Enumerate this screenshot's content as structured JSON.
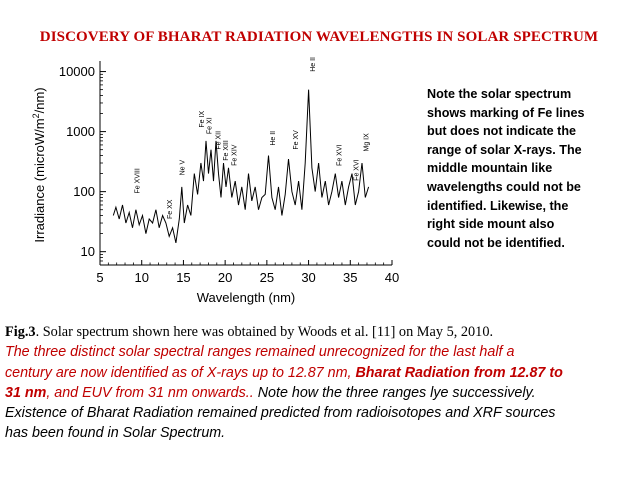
{
  "title": "DISCOVERY OF BHARAT RADIATION WAVELENGTHS IN SOLAR SPECTRUM",
  "note_lines": [
    "Note the solar spectrum",
    "shows marking of Fe lines",
    "but  does not indicate  the",
    "range of  solar X-rays.  The",
    "middle mountain like",
    "wavelengths  could not be",
    "identified.  Likewise, the",
    "right side mount also",
    "could not be identified."
  ],
  "caption": {
    "fig_label": "Fig.3",
    "line1_text": ". Solar spectrum shown here was obtained by Woods et al. [11] on May 5, 2010.",
    "line2": "The three distinct solar spectral ranges remained unrecognized for the last half a",
    "line3_a": "century are now identified as of X-rays up to 12.87 nm, ",
    "line3_b": "Bharat Radiation from 12.87 to",
    "line4_a": "31 nm",
    "line4_b": ", and EUV from 31 nm onwards..",
    "line4_c": " Note how the three ranges lye successively.",
    "line5": "Existence of Bharat Radiation remained predicted from radioisotopes and XRF sources",
    "line6": "has been found in Solar Spectrum."
  },
  "chart_data": {
    "type": "line",
    "xlabel": "Wavelength (nm)",
    "ylabel_parts": [
      "Irradiance (microW/m",
      "2",
      "/nm)"
    ],
    "xlim": [
      5,
      40
    ],
    "ylim": [
      6,
      15000
    ],
    "yscale": "log",
    "xticks": [
      5,
      10,
      15,
      20,
      25,
      30,
      35,
      40
    ],
    "yticks": [
      10,
      100,
      1000,
      10000
    ],
    "ytick_labels": [
      "10",
      "100",
      "1000",
      "10000"
    ],
    "line_color": "#000000",
    "series": [
      {
        "x": [
          6.6,
          6.9,
          7.3,
          7.7,
          8.1,
          8.5,
          8.9,
          9.3,
          9.7,
          10.1,
          10.5,
          10.9,
          11.3,
          11.7,
          12.1,
          12.5,
          12.9,
          13.3,
          13.7,
          14.1,
          14.5,
          14.8,
          15.1,
          15.5,
          15.9,
          16.3,
          16.7,
          17.1,
          17.4,
          17.7,
          18.0,
          18.3,
          18.6,
          18.9,
          19.2,
          19.5,
          19.8,
          20.1,
          20.4,
          20.8,
          21.2,
          21.6,
          22.0,
          22.4,
          22.8,
          23.2,
          23.6,
          24.0,
          24.4,
          24.8,
          25.2,
          25.6,
          26.0,
          26.4,
          26.8,
          27.2,
          27.6,
          28.0,
          28.4,
          28.8,
          29.2,
          29.6,
          30.0,
          30.4,
          30.8,
          31.2,
          31.6,
          32.0,
          32.4,
          32.8,
          33.2,
          33.6,
          34.0,
          34.4,
          34.8,
          35.2,
          35.6,
          36.0,
          36.4,
          36.8,
          37.2
        ],
        "y": [
          40,
          55,
          35,
          60,
          30,
          45,
          25,
          50,
          28,
          40,
          20,
          35,
          30,
          50,
          25,
          40,
          30,
          18,
          25,
          14,
          35,
          120,
          30,
          60,
          40,
          200,
          90,
          300,
          150,
          700,
          200,
          500,
          150,
          700,
          200,
          80,
          300,
          120,
          250,
          80,
          150,
          60,
          120,
          50,
          200,
          70,
          120,
          50,
          80,
          90,
          400,
          80,
          50,
          120,
          40,
          90,
          350,
          100,
          60,
          150,
          50,
          300,
          5000,
          250,
          100,
          300,
          80,
          150,
          60,
          100,
          200,
          80,
          150,
          60,
          120,
          200,
          60,
          100,
          300,
          80,
          120
        ]
      }
    ],
    "annotations": [
      {
        "label": "Fe XVIII",
        "x": 9.4,
        "y": 80
      },
      {
        "label": "Fe XX",
        "x": 13.3,
        "y": 30
      },
      {
        "label": "Ne V",
        "x": 14.8,
        "y": 160
      },
      {
        "label": "Fe IX",
        "x": 17.1,
        "y": 1000
      },
      {
        "label": "Fe XI",
        "x": 18.0,
        "y": 780
      },
      {
        "label": "Fe XII",
        "x": 19.1,
        "y": 430
      },
      {
        "label": "Fe XIII",
        "x": 20.0,
        "y": 280
      },
      {
        "label": "Fe XIV",
        "x": 21.0,
        "y": 230
      },
      {
        "label": "He II",
        "x": 25.6,
        "y": 500
      },
      {
        "label": "Fe XV",
        "x": 28.4,
        "y": 430
      },
      {
        "label": "He II",
        "x": 30.4,
        "y": 8500
      },
      {
        "label": "Fe XVI",
        "x": 33.6,
        "y": 230
      },
      {
        "label": "Fe XVI",
        "x": 35.6,
        "y": 130
      },
      {
        "label": "Mg IX",
        "x": 36.8,
        "y": 400
      }
    ]
  }
}
